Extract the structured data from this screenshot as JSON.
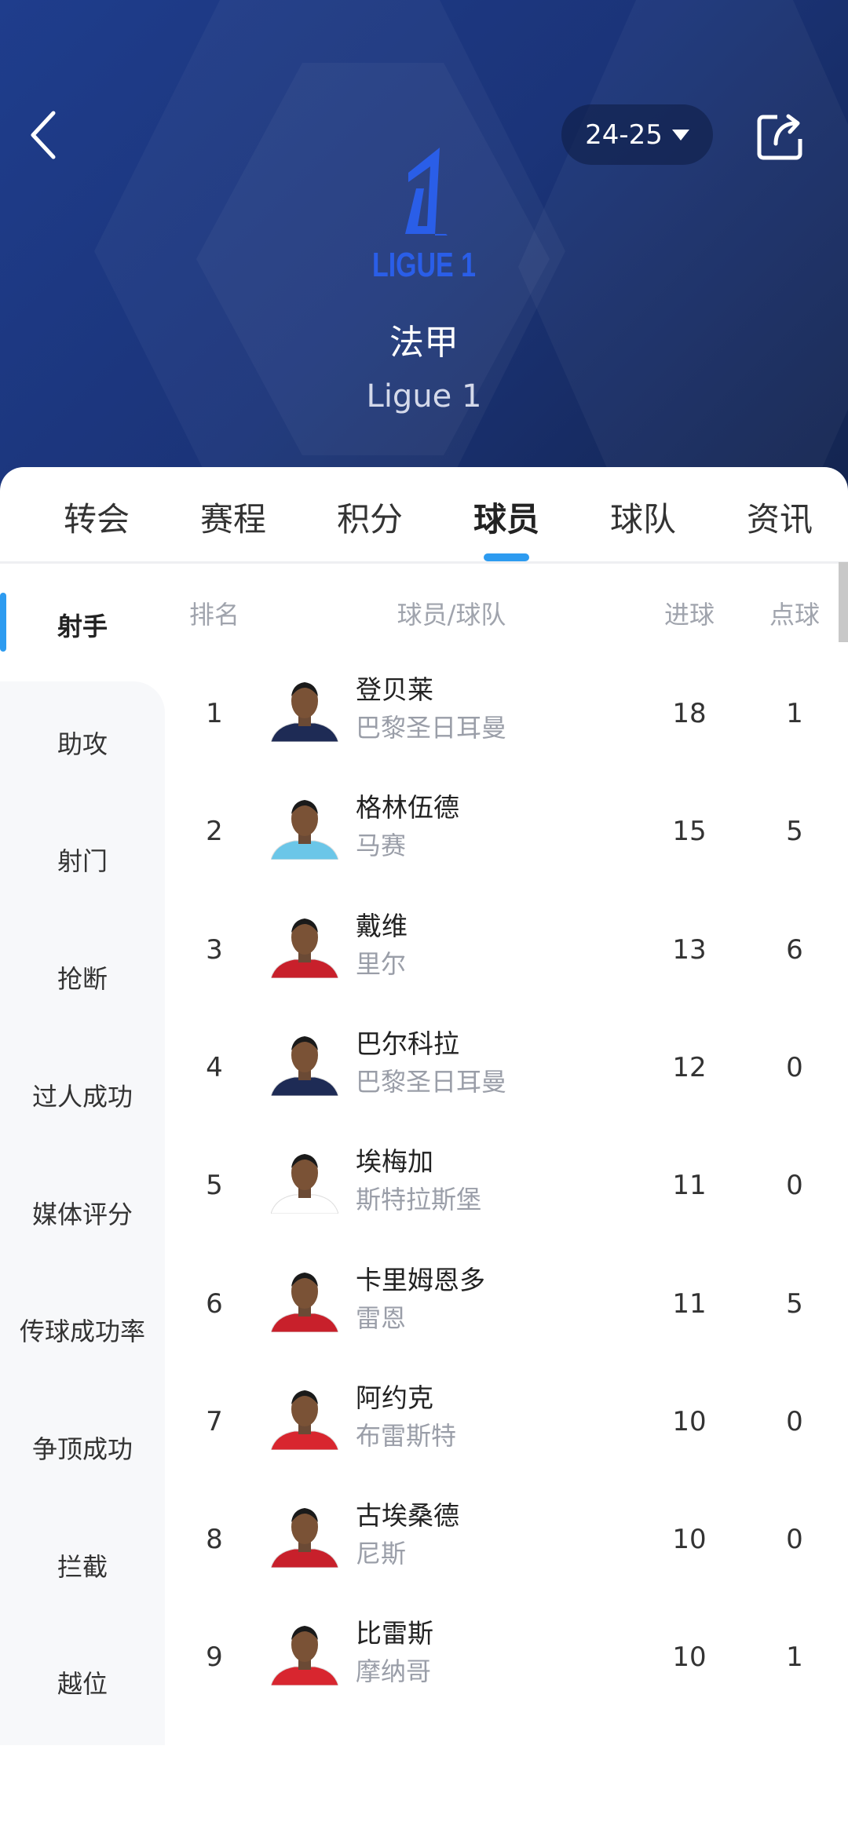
{
  "header": {
    "season": "24-25",
    "league_cn": "法甲",
    "league_en": "Ligue 1",
    "logo_text": "LIGUE 1"
  },
  "tabs": [
    {
      "label": "转会"
    },
    {
      "label": "赛程"
    },
    {
      "label": "积分"
    },
    {
      "label": "球员",
      "active": true
    },
    {
      "label": "球队"
    },
    {
      "label": "资讯"
    }
  ],
  "sidebar": [
    {
      "label": "射手",
      "active": true
    },
    {
      "label": "助攻"
    },
    {
      "label": "射门"
    },
    {
      "label": "抢断"
    },
    {
      "label": "过人成功"
    },
    {
      "label": "媒体评分"
    },
    {
      "label": "传球成功率"
    },
    {
      "label": "争顶成功"
    },
    {
      "label": "拦截"
    },
    {
      "label": "越位"
    }
  ],
  "columns": {
    "rank": "排名",
    "player": "球员/球队",
    "goals": "进球",
    "penalties": "点球"
  },
  "rows": [
    {
      "rank": "1",
      "name": "登贝莱",
      "team": "巴黎圣日耳曼",
      "goals": "18",
      "pens": "1",
      "kit": "#1e2b55"
    },
    {
      "rank": "2",
      "name": "格林伍德",
      "team": "马赛",
      "goals": "15",
      "pens": "5",
      "kit": "#6bc6e8"
    },
    {
      "rank": "3",
      "name": "戴维",
      "team": "里尔",
      "goals": "13",
      "pens": "6",
      "kit": "#c8202b"
    },
    {
      "rank": "4",
      "name": "巴尔科拉",
      "team": "巴黎圣日耳曼",
      "goals": "12",
      "pens": "0",
      "kit": "#1e2b55"
    },
    {
      "rank": "5",
      "name": "埃梅加",
      "team": "斯特拉斯堡",
      "goals": "11",
      "pens": "0",
      "kit": "#ffffff"
    },
    {
      "rank": "6",
      "name": "卡里姆恩多",
      "team": "雷恩",
      "goals": "11",
      "pens": "5",
      "kit": "#c8202b"
    },
    {
      "rank": "7",
      "name": "阿约克",
      "team": "布雷斯特",
      "goals": "10",
      "pens": "0",
      "kit": "#d8262f"
    },
    {
      "rank": "8",
      "name": "古埃桑德",
      "team": "尼斯",
      "goals": "10",
      "pens": "0",
      "kit": "#c8202b"
    },
    {
      "rank": "9",
      "name": "比雷斯",
      "team": "摩纳哥",
      "goals": "10",
      "pens": "1",
      "kit": "#d8262f"
    }
  ],
  "colors": {
    "accent": "#2d9bf0",
    "header_bg": "#1f3d8c",
    "logo": "#2a5ee8"
  }
}
